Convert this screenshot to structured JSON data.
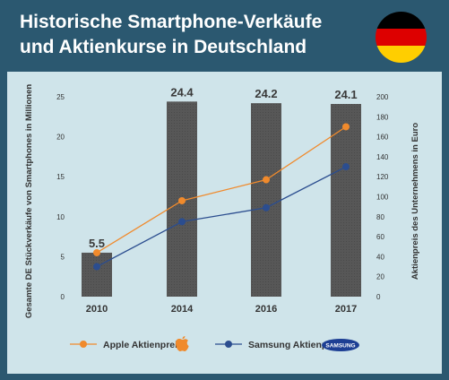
{
  "header": {
    "title_line1": "Historische Smartphone-Verkäufe",
    "title_line2": "und Aktienkurse in Deutschland",
    "flag_colors": [
      "#000000",
      "#dd0000",
      "#ffce00"
    ]
  },
  "chart_data": {
    "type": "bar",
    "categories": [
      "2010",
      "2014",
      "2016",
      "2017"
    ],
    "series": [
      {
        "values": [
          5.5,
          24.4,
          24.2,
          24.1
        ],
        "axis": "left",
        "color": "#575757"
      },
      {
        "name": "Apple Aktienpreis",
        "type": "line",
        "axis": "right",
        "values": [
          44,
          96,
          117,
          170
        ],
        "color": "#f08a2c",
        "icon": "apple-logo-icon"
      },
      {
        "name": "Samsung Aktienpreis",
        "type": "line",
        "axis": "right",
        "values": [
          30,
          75,
          89,
          130
        ],
        "color": "#2b4d8f",
        "icon": "samsung-logo-icon"
      }
    ],
    "data_labels": [
      "5.5",
      "24.4",
      "24.2",
      "24.1"
    ],
    "ylabel": "Gesamte DE Stückverkäufe von Smartphones in Millionen",
    "ylabel_right": "Aktienpreis des Unternehmens in Euro",
    "ylim": [
      0,
      25
    ],
    "ylim_right": [
      0,
      200
    ],
    "yticks": [
      0,
      5,
      10,
      15,
      20,
      25
    ],
    "yticks_right": [
      0,
      20,
      40,
      60,
      80,
      100,
      120,
      140,
      160,
      180,
      200
    ],
    "grid": false,
    "legend_position": "bottom",
    "samsung_logo_text": "SAMSUNG"
  },
  "colors": {
    "background": "#2b5870",
    "panel": "#cfe4ea"
  }
}
